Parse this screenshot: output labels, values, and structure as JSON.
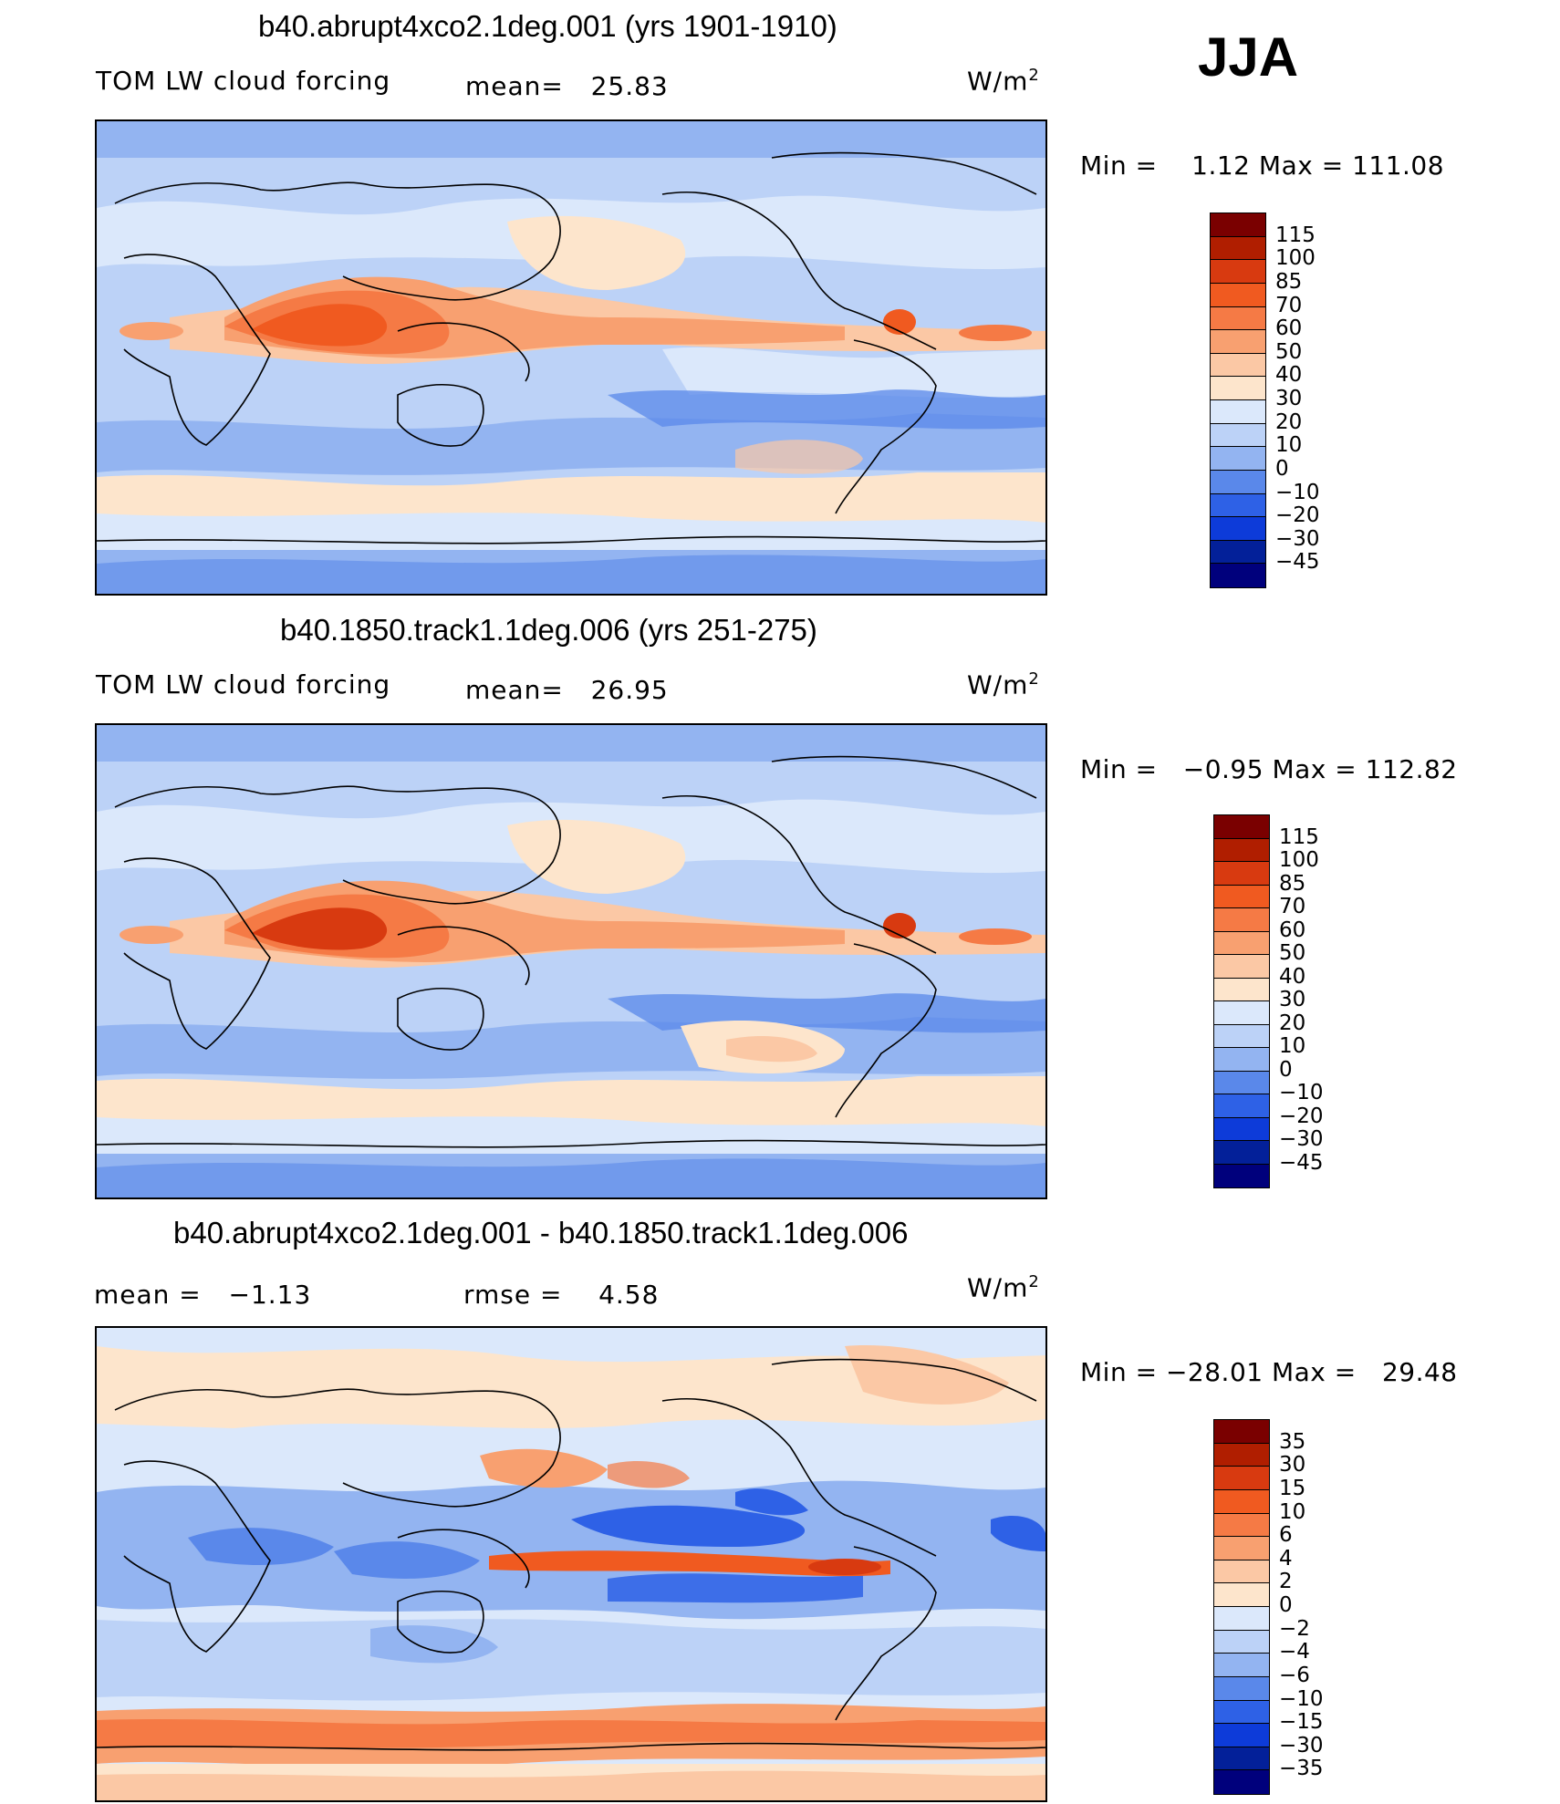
{
  "season": "JJA",
  "panels": [
    {
      "title": "b40.abrupt4xco2.1deg.001 (yrs 1901-1910)",
      "left_label": "TOM LW cloud forcing",
      "stat_label": "mean=",
      "stat_value": "25.83",
      "units_base": "W/m",
      "units_exp": "2",
      "min_label": "Min  =",
      "min_value": "1.12",
      "max_label": "Max  =",
      "max_value": "111.08",
      "ticks": [
        "115",
        "100",
        "85",
        "70",
        "60",
        "50",
        "40",
        "30",
        "20",
        "10",
        "0",
        "−10",
        "−20",
        "−30",
        "−45"
      ]
    },
    {
      "title": "b40.1850.track1.1deg.006 (yrs 251-275)",
      "left_label": "TOM LW cloud forcing",
      "stat_label": "mean=",
      "stat_value": "26.95",
      "units_base": "W/m",
      "units_exp": "2",
      "min_label": "Min  =",
      "min_value": "−0.95",
      "max_label": "Max  =",
      "max_value": "112.82",
      "ticks": [
        "115",
        "100",
        "85",
        "70",
        "60",
        "50",
        "40",
        "30",
        "20",
        "10",
        "0",
        "−10",
        "−20",
        "−30",
        "−45"
      ]
    },
    {
      "title": "b40.abrupt4xco2.1deg.001 - b40.1850.track1.1deg.006",
      "mean_label": "mean  =",
      "mean_value": "−1.13",
      "rmse_label": "rmse  =",
      "rmse_value": "4.58",
      "units_base": "W/m",
      "units_exp": "2",
      "min_label": "Min  =",
      "min_value": "−28.01",
      "max_label": "Max  =",
      "max_value": "29.48",
      "ticks": [
        "35",
        "30",
        "15",
        "10",
        "6",
        "4",
        "2",
        "0",
        "−2",
        "−4",
        "−6",
        "−10",
        "−15",
        "−30",
        "−35"
      ]
    }
  ],
  "colors": {
    "field_scale": [
      "#7a0000",
      "#b01e00",
      "#d83a10",
      "#f05a20",
      "#f57a45",
      "#f8a070",
      "#fbc8a5",
      "#fde5cc",
      "#dbe8fb",
      "#bcd2f7",
      "#93b4f1",
      "#5a88ea",
      "#2e61e6",
      "#0d3bd9",
      "#032099",
      "#00007c"
    ],
    "diff_scale": [
      "#7a0000",
      "#b01e00",
      "#d83a10",
      "#f05a20",
      "#f57a45",
      "#f8a070",
      "#fbc8a5",
      "#fde5cc",
      "#dbe8fb",
      "#bcd2f7",
      "#93b4f1",
      "#5a88ea",
      "#2e61e6",
      "#0d3bd9",
      "#032099",
      "#00007c"
    ]
  }
}
